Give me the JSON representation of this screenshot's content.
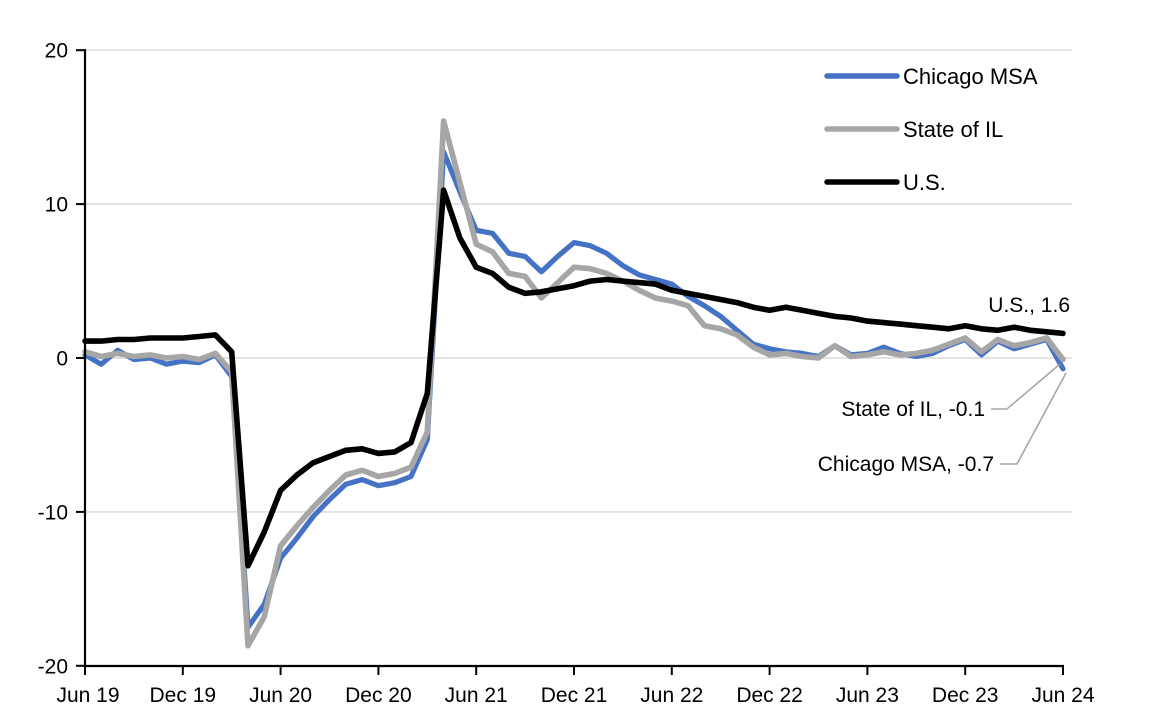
{
  "chart_data": {
    "type": "line",
    "title": "",
    "xlabel": "",
    "ylabel": "",
    "ylim": [
      -20,
      20
    ],
    "yticks": [
      20,
      10,
      0,
      -10,
      -20
    ],
    "ytick_labels": [
      "20",
      "10",
      "0",
      "-10",
      "-20"
    ],
    "x_tick_labels": [
      "Jun 19",
      "Dec 19",
      "Jun 20",
      "Dec 20",
      "Jun 21",
      "Dec 21",
      "Jun 22",
      "Dec 22",
      "Jun 23",
      "Dec 23",
      "Jun 24"
    ],
    "x_monthly_labels": [
      "Jun 19",
      "Jul 19",
      "Aug 19",
      "Sep 19",
      "Oct 19",
      "Nov 19",
      "Dec 19",
      "Jan 20",
      "Feb 20",
      "Mar 20",
      "Apr 20",
      "May 20",
      "Jun 20",
      "Jul 20",
      "Aug 20",
      "Sep 20",
      "Oct 20",
      "Nov 20",
      "Dec 20",
      "Jan 21",
      "Feb 21",
      "Mar 21",
      "Apr 21",
      "May 21",
      "Jun 21",
      "Jul 21",
      "Aug 21",
      "Sep 21",
      "Oct 21",
      "Nov 21",
      "Dec 21",
      "Jan 22",
      "Feb 22",
      "Mar 22",
      "Apr 22",
      "May 22",
      "Jun 22",
      "Jul 22",
      "Aug 22",
      "Sep 22",
      "Oct 22",
      "Nov 22",
      "Dec 22",
      "Jan 23",
      "Feb 23",
      "Mar 23",
      "Apr 23",
      "May 23",
      "Jun 23",
      "Jul 23",
      "Aug 23",
      "Sep 23",
      "Oct 23",
      "Nov 23",
      "Dec 23",
      "Jan 24",
      "Feb 24",
      "Mar 24",
      "Apr 24",
      "May 24",
      "Jun 24"
    ],
    "grid": true,
    "legend_position": "top-right",
    "series": [
      {
        "name": "Chicago MSA",
        "color": "#4472C4",
        "values": [
          0.2,
          -0.4,
          0.5,
          -0.1,
          0.0,
          -0.4,
          -0.2,
          -0.3,
          0.2,
          -1.2,
          -17.5,
          -16.0,
          -13.0,
          -11.7,
          -10.3,
          -9.2,
          -8.2,
          -7.9,
          -8.3,
          -8.1,
          -7.7,
          -5.3,
          13.4,
          10.8,
          8.3,
          8.1,
          6.8,
          6.6,
          5.6,
          6.6,
          7.5,
          7.3,
          6.8,
          6.0,
          5.4,
          5.1,
          4.8,
          4.0,
          3.4,
          2.7,
          1.8,
          0.9,
          0.6,
          0.4,
          0.3,
          0.1,
          0.8,
          0.2,
          0.3,
          0.7,
          0.3,
          0.1,
          0.3,
          0.8,
          1.2,
          0.2,
          1.1,
          0.6,
          0.9,
          1.2,
          -0.7
        ]
      },
      {
        "name": "State of IL",
        "color": "#A6A6A6",
        "values": [
          0.4,
          0.1,
          0.3,
          0.1,
          0.2,
          0.0,
          0.1,
          -0.1,
          0.3,
          -0.9,
          -18.7,
          -16.8,
          -12.2,
          -10.9,
          -9.7,
          -8.6,
          -7.6,
          -7.3,
          -7.7,
          -7.5,
          -7.1,
          -4.8,
          15.4,
          11.4,
          7.4,
          6.9,
          5.5,
          5.3,
          3.9,
          4.9,
          5.9,
          5.8,
          5.5,
          5.0,
          4.4,
          3.9,
          3.7,
          3.4,
          2.1,
          1.9,
          1.5,
          0.7,
          0.2,
          0.3,
          0.1,
          0.0,
          0.8,
          0.1,
          0.2,
          0.4,
          0.2,
          0.3,
          0.5,
          0.9,
          1.3,
          0.4,
          1.2,
          0.8,
          1.0,
          1.3,
          -0.1
        ]
      },
      {
        "name": "U.S.",
        "color": "#000000",
        "values": [
          1.1,
          1.1,
          1.2,
          1.2,
          1.3,
          1.3,
          1.3,
          1.4,
          1.5,
          0.4,
          -13.5,
          -11.3,
          -8.6,
          -7.6,
          -6.8,
          -6.4,
          -6.0,
          -5.9,
          -6.2,
          -6.1,
          -5.5,
          -2.3,
          10.9,
          7.8,
          5.9,
          5.5,
          4.6,
          4.2,
          4.3,
          4.5,
          4.7,
          5.0,
          5.1,
          5.0,
          4.9,
          4.8,
          4.4,
          4.2,
          4.0,
          3.8,
          3.6,
          3.3,
          3.1,
          3.3,
          3.1,
          2.9,
          2.7,
          2.6,
          2.4,
          2.3,
          2.2,
          2.1,
          2.0,
          1.9,
          2.1,
          1.9,
          1.8,
          2.0,
          1.8,
          1.7,
          1.6
        ]
      }
    ],
    "annotations": [
      {
        "text": "U.S., 1.6",
        "series": "U.S.",
        "value": 1.6
      },
      {
        "text": "State of IL, -0.1",
        "series": "State of IL",
        "value": -0.1
      },
      {
        "text": "Chicago MSA, -0.7",
        "series": "Chicago MSA",
        "value": -0.7
      }
    ]
  },
  "colors": {
    "background": "#FFFFFF",
    "gridline": "#D9D9D9",
    "axis": "#000000",
    "annotation_text": "#404040",
    "leader_line": "#A6A6A6"
  }
}
